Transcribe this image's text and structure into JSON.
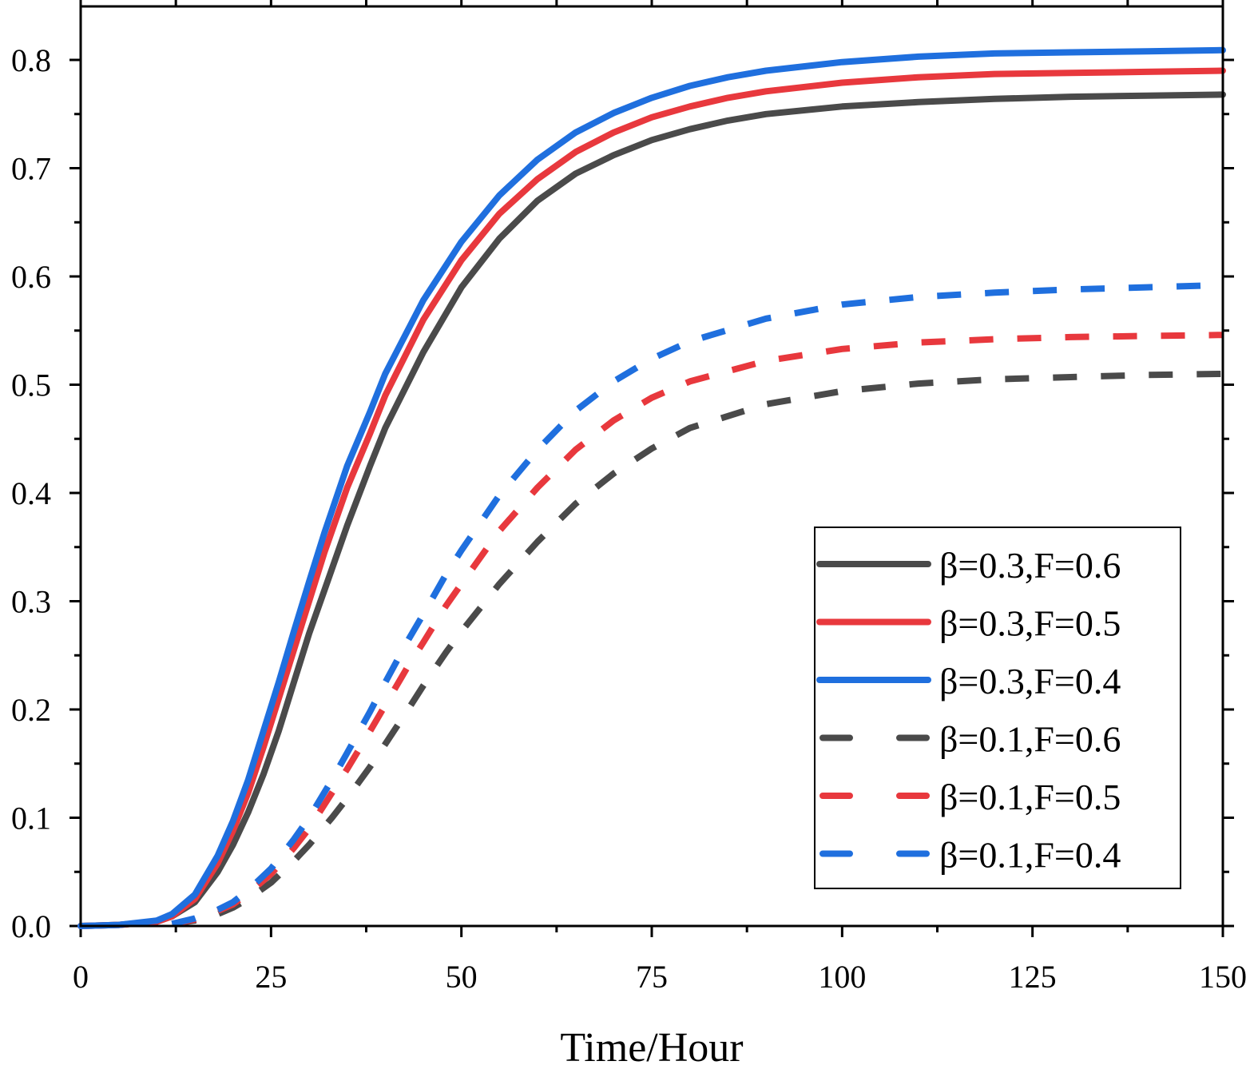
{
  "chart_data": {
    "type": "line",
    "title": "",
    "xlabel": "Time/Hour",
    "ylabel": "",
    "xlim": [
      0,
      150
    ],
    "ylim": [
      0,
      0.85
    ],
    "xticks": [
      0,
      25,
      50,
      75,
      100,
      125,
      150
    ],
    "xtick_labels": [
      "0",
      "25",
      "50",
      "75",
      "100",
      "125",
      "150"
    ],
    "yticks": [
      0.0,
      0.1,
      0.2,
      0.3,
      0.4,
      0.5,
      0.6,
      0.7,
      0.8
    ],
    "ytick_labels": [
      "0.0",
      "0.1",
      "0.2",
      "0.3",
      "0.4",
      "0.5",
      "0.6",
      "0.7",
      "0.8"
    ],
    "grid": false,
    "legend_position": "bottom-right",
    "series": [
      {
        "name": "β=0.3,F=0.6",
        "color": "#4a4a4a",
        "dash": "solid",
        "x": [
          0,
          5,
          10,
          12,
          15,
          18,
          20,
          22,
          24,
          26,
          28,
          30,
          32,
          35,
          38,
          40,
          45,
          50,
          55,
          60,
          65,
          70,
          75,
          80,
          85,
          90,
          100,
          110,
          120,
          130,
          140,
          150
        ],
        "y": [
          0,
          0.001,
          0.004,
          0.009,
          0.022,
          0.05,
          0.075,
          0.105,
          0.14,
          0.18,
          0.225,
          0.27,
          0.31,
          0.37,
          0.425,
          0.46,
          0.53,
          0.59,
          0.635,
          0.67,
          0.695,
          0.712,
          0.726,
          0.736,
          0.744,
          0.75,
          0.757,
          0.761,
          0.764,
          0.766,
          0.767,
          0.768
        ]
      },
      {
        "name": "β=0.3,F=0.5",
        "color": "#e8383d",
        "dash": "solid",
        "x": [
          0,
          5,
          10,
          12,
          15,
          18,
          20,
          22,
          24,
          26,
          28,
          30,
          32,
          35,
          38,
          40,
          45,
          50,
          55,
          60,
          65,
          70,
          75,
          80,
          85,
          90,
          100,
          110,
          120,
          130,
          140,
          150
        ],
        "y": [
          0,
          0.001,
          0.004,
          0.009,
          0.025,
          0.058,
          0.088,
          0.123,
          0.165,
          0.21,
          0.255,
          0.3,
          0.345,
          0.405,
          0.455,
          0.49,
          0.56,
          0.615,
          0.658,
          0.69,
          0.715,
          0.733,
          0.747,
          0.757,
          0.765,
          0.771,
          0.779,
          0.784,
          0.787,
          0.788,
          0.789,
          0.79
        ]
      },
      {
        "name": "β=0.3,F=0.4",
        "color": "#1f6fde",
        "dash": "solid",
        "x": [
          0,
          5,
          10,
          12,
          15,
          18,
          20,
          22,
          24,
          26,
          28,
          30,
          32,
          35,
          38,
          40,
          45,
          50,
          55,
          60,
          65,
          70,
          75,
          80,
          85,
          90,
          100,
          110,
          120,
          130,
          140,
          150
        ],
        "y": [
          0,
          0.001,
          0.005,
          0.011,
          0.029,
          0.065,
          0.097,
          0.135,
          0.18,
          0.225,
          0.272,
          0.318,
          0.363,
          0.425,
          0.475,
          0.51,
          0.578,
          0.632,
          0.675,
          0.708,
          0.733,
          0.751,
          0.765,
          0.776,
          0.784,
          0.79,
          0.798,
          0.803,
          0.806,
          0.807,
          0.808,
          0.809
        ]
      },
      {
        "name": "β=0.1,F=0.6",
        "color": "#4a4a4a",
        "dash": "dashed",
        "x": [
          12,
          15,
          18,
          20,
          22,
          25,
          28,
          30,
          33,
          35,
          38,
          40,
          43,
          45,
          48,
          50,
          55,
          60,
          65,
          70,
          75,
          80,
          90,
          100,
          110,
          120,
          130,
          140,
          150
        ],
        "y": [
          0.002,
          0.005,
          0.011,
          0.017,
          0.025,
          0.04,
          0.06,
          0.075,
          0.1,
          0.118,
          0.147,
          0.168,
          0.2,
          0.222,
          0.253,
          0.272,
          0.316,
          0.355,
          0.39,
          0.418,
          0.441,
          0.46,
          0.482,
          0.494,
          0.501,
          0.505,
          0.507,
          0.509,
          0.51
        ]
      },
      {
        "name": "β=0.1,F=0.5",
        "color": "#e8383d",
        "dash": "dashed",
        "x": [
          12,
          15,
          18,
          20,
          22,
          25,
          28,
          30,
          33,
          35,
          38,
          40,
          43,
          45,
          48,
          50,
          55,
          60,
          65,
          70,
          75,
          80,
          90,
          100,
          110,
          120,
          130,
          140,
          150
        ],
        "y": [
          0.002,
          0.006,
          0.014,
          0.02,
          0.03,
          0.048,
          0.072,
          0.09,
          0.123,
          0.145,
          0.18,
          0.204,
          0.24,
          0.262,
          0.296,
          0.316,
          0.365,
          0.405,
          0.44,
          0.467,
          0.488,
          0.503,
          0.522,
          0.533,
          0.539,
          0.542,
          0.544,
          0.545,
          0.546
        ]
      },
      {
        "name": "β=0.1,F=0.4",
        "color": "#1f6fde",
        "dash": "dashed",
        "x": [
          12,
          15,
          18,
          20,
          22,
          25,
          28,
          30,
          33,
          35,
          38,
          40,
          43,
          45,
          48,
          50,
          55,
          60,
          65,
          70,
          75,
          80,
          90,
          100,
          110,
          120,
          130,
          140,
          150
        ],
        "y": [
          0.002,
          0.007,
          0.015,
          0.022,
          0.033,
          0.053,
          0.08,
          0.1,
          0.135,
          0.16,
          0.198,
          0.225,
          0.264,
          0.288,
          0.325,
          0.347,
          0.398,
          0.44,
          0.476,
          0.503,
          0.524,
          0.54,
          0.561,
          0.574,
          0.581,
          0.585,
          0.588,
          0.59,
          0.592
        ]
      }
    ]
  }
}
